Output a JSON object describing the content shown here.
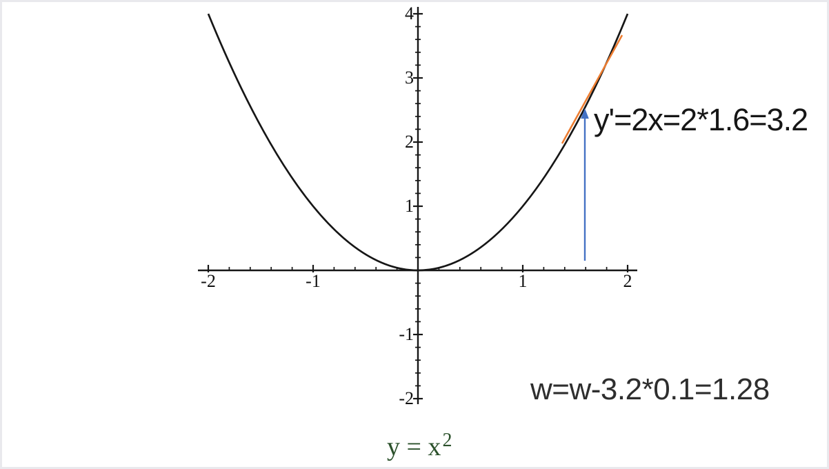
{
  "chart_data": {
    "type": "line",
    "title": "",
    "function": "y = x^2",
    "formula_label": {
      "base": "y = x",
      "exponent": "2",
      "color": "#2b512b"
    },
    "x_range": [
      -2,
      2
    ],
    "y_range": [
      -2,
      4
    ],
    "x_tick_labels": [
      "-2",
      "-1",
      "1",
      "2"
    ],
    "y_tick_labels": [
      "4",
      "3",
      "2",
      "1",
      "-1",
      "-2"
    ],
    "x_major_ticks": [
      -2,
      -1,
      1,
      2
    ],
    "y_major_ticks": [
      -2,
      -1,
      1,
      2,
      3,
      4
    ],
    "minor_tick_step": 0.2,
    "grid": false,
    "legend": false,
    "axis_color": "#161616",
    "series": [
      {
        "name": "y = x^2",
        "color": "#161616",
        "x": [
          -2,
          -1.75,
          -1.5,
          -1.25,
          -1,
          -0.75,
          -0.5,
          -0.25,
          0,
          0.25,
          0.5,
          0.75,
          1,
          1.25,
          1.5,
          1.75,
          2
        ],
        "y": [
          4,
          3.0625,
          2.25,
          1.5625,
          1,
          0.5625,
          0.25,
          0.0625,
          0,
          0.0625,
          0.25,
          0.5625,
          1,
          1.5625,
          2.25,
          3.0625,
          4
        ]
      }
    ],
    "tangent_line": {
      "at_x": 1.6,
      "slope": 3.2,
      "color": "#ED7D31"
    },
    "arrow": {
      "x": 1.58,
      "from_y": 0.15,
      "to_y": 2.5,
      "direction": "up",
      "color": "#4472C4"
    },
    "annotations": [
      {
        "id": "derivative",
        "text": "y'=2x=2*1.6=3.2"
      },
      {
        "id": "weight-update",
        "text": "w=w-3.2*0.1=1.28"
      }
    ]
  }
}
